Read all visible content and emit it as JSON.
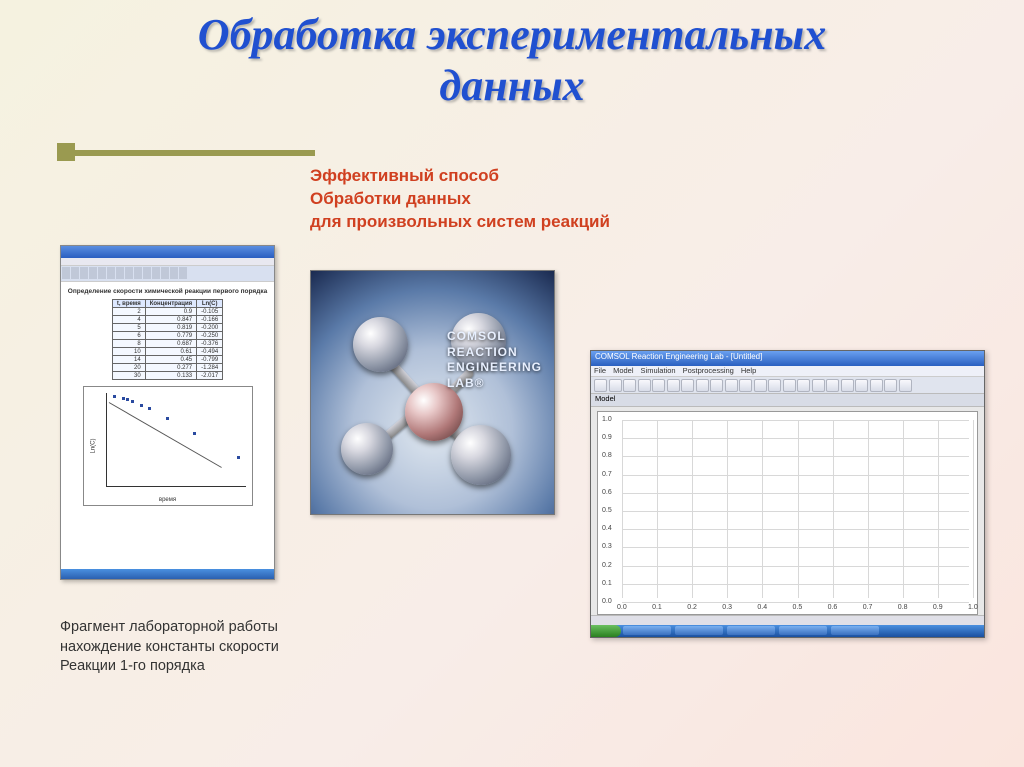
{
  "title_line1": "Обработка экспериментальных",
  "title_line2": "данных",
  "subtitle_line1": "Эффективный способ",
  "subtitle_line2": "Обработки данных",
  "subtitle_line3": "для произвольных систем реакций",
  "caption_line1": "Фрагмент лабораторной работы",
  "caption_line2": "нахождение константы скорости",
  "caption_line3": "Реакции 1-го порядка",
  "colors": {
    "title": "#2050d0",
    "subtitle": "#d04020",
    "accent": "#9a9a50",
    "caption": "#333333",
    "bg_start": "#f5f2e0",
    "bg_end": "#fae5de"
  },
  "excel": {
    "heading": "Определение скорости химической реакции первого порядка",
    "columns": [
      "t, время",
      "Концентрация",
      "Ln(C)"
    ],
    "rows": [
      [
        "2",
        "0.9",
        "-0.105"
      ],
      [
        "4",
        "0.847",
        "-0.166"
      ],
      [
        "5",
        "0.819",
        "-0.200"
      ],
      [
        "6",
        "0.779",
        "-0.250"
      ],
      [
        "8",
        "0.687",
        "-0.376"
      ],
      [
        "10",
        "0.61",
        "-0.494"
      ],
      [
        "14",
        "0.45",
        "-0.799"
      ],
      [
        "20",
        "0.277",
        "-1.284"
      ],
      [
        "30",
        "0.133",
        "-2.017"
      ]
    ],
    "chart": {
      "type": "scatter",
      "xlabel": "время",
      "ylabel": "Ln(C)",
      "xlim": [
        0,
        32
      ],
      "ylim": [
        -3.0,
        0.0
      ],
      "points_x": [
        2,
        4,
        5,
        6,
        8,
        10,
        14,
        20,
        30
      ],
      "points_y": [
        -0.11,
        -0.17,
        -0.2,
        -0.25,
        -0.38,
        -0.49,
        -0.8,
        -1.28,
        -2.02
      ],
      "point_color": "#2a4aa0",
      "trend_color": "#555555",
      "background_color": "#ffffff",
      "border_color": "#888888"
    }
  },
  "comsol": {
    "text_line1": "COMSOL",
    "text_line2": "REACTION",
    "text_line3": "ENGINEERING",
    "text_line4": "LAB®",
    "bg_outer": "#1a2a50",
    "bg_inner": "#e0e8f0",
    "atom_gray": "#9098a8",
    "atom_center": "#b07878"
  },
  "app": {
    "title": "COMSOL Reaction Engineering Lab - [Untitled]",
    "menu": [
      "File",
      "Model",
      "Simulation",
      "Postprocessing",
      "Help"
    ],
    "tabs": [
      "Model"
    ],
    "plot": {
      "type": "line",
      "xlim": [
        0.0,
        1.0
      ],
      "ylim": [
        0.0,
        1.0
      ],
      "xtick_step": 0.1,
      "ytick_step": 0.1,
      "background_color": "#ffffff",
      "grid_color": "#d8d8d8",
      "tick_fontsize": 7,
      "tick_color": "#444444"
    },
    "toolbar_icon_count": 22,
    "taskbar_items": 5
  }
}
